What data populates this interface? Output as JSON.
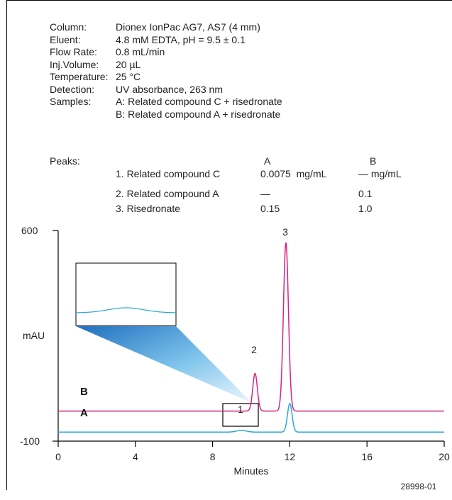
{
  "conditions": [
    {
      "label": "Column:",
      "value": "Dionex IonPac AG7, AS7 (4 mm)"
    },
    {
      "label": "Eluent:",
      "value": "4.8 mM EDTA, pH = 9.5 ± 0.1"
    },
    {
      "label": "Flow Rate:",
      "value": "0.8 mL/min"
    },
    {
      "label": "Inj.Volume:",
      "value": "20 µL"
    },
    {
      "label": "Temperature:",
      "value": "25 °C"
    },
    {
      "label": "Detection:",
      "value": "UV absorbance, 263 nm"
    },
    {
      "label": "Samples:",
      "value": "A: Related compound C + risedronate"
    },
    {
      "label": "",
      "value": "B: Related compound A + risedronate"
    }
  ],
  "peaks_table": {
    "label": "Peaks:",
    "col_a": "A",
    "col_b": "B",
    "rows": [
      {
        "name": "1. Related compound C",
        "a": "0.0075  mg/mL",
        "b": "— mg/mL"
      },
      {
        "name": "2. Related compound A",
        "a": "—",
        "b": "0.1"
      },
      {
        "name": "3. Risedronate",
        "a": "0.15",
        "b": "1.0"
      }
    ]
  },
  "chart_data": {
    "type": "line",
    "xlabel": "Minutes",
    "ylabel": "mAU",
    "xlim": [
      0,
      20
    ],
    "ylim": [
      -100,
      600
    ],
    "x_ticks": [
      "0",
      "4",
      "8",
      "12",
      "16",
      "20"
    ],
    "y_ticks": [
      "600",
      "-100"
    ],
    "series": [
      {
        "name": "B",
        "color": "#d6247f",
        "baseline": 0,
        "peaks": [
          {
            "x": 10.2,
            "height": 125,
            "width": 0.12
          },
          {
            "x": 11.8,
            "height": 560,
            "width": 0.13
          }
        ]
      },
      {
        "name": "A",
        "color": "#2aa7d8",
        "baseline": -70,
        "peaks": [
          {
            "x": 9.5,
            "height": 6,
            "width": 0.25
          },
          {
            "x": 12.0,
            "height": 95,
            "width": 0.12
          }
        ]
      }
    ],
    "peak_labels": [
      {
        "text": "1",
        "x": 9.5
      },
      {
        "text": "2",
        "x": 10.2
      },
      {
        "text": "3",
        "x": 11.8
      }
    ],
    "inset_note": "zoomed view of peak 1 in trace A"
  },
  "figure_id": "28998-01"
}
